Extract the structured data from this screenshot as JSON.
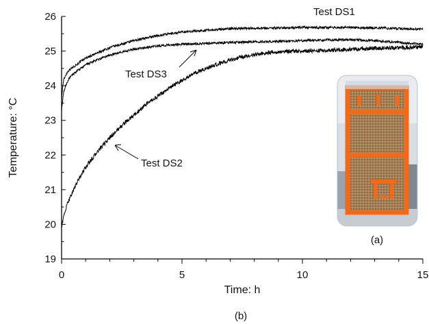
{
  "chart_data": {
    "type": "line",
    "title": "",
    "xlabel": "Time: h",
    "ylabel": "Temperature: °C",
    "xlim": [
      0,
      15
    ],
    "ylim": [
      19,
      26
    ],
    "x_ticks": [
      0,
      5,
      10,
      15
    ],
    "y_ticks": [
      19,
      20,
      21,
      22,
      23,
      24,
      25,
      26
    ],
    "grid": false,
    "legend": "none",
    "series": [
      {
        "name": "Test DS1",
        "color": "#000000",
        "x": [
          0,
          0.05,
          0.1,
          0.2,
          0.3,
          0.5,
          0.8,
          1.0,
          1.5,
          2.0,
          2.5,
          3.0,
          3.5,
          4.0,
          4.5,
          5.0,
          6.0,
          7.0,
          8.0,
          9.0,
          10.0,
          11.0,
          12.0,
          13.0,
          14.0,
          15.0
        ],
        "y": [
          23.6,
          24.0,
          24.2,
          24.35,
          24.45,
          24.55,
          24.7,
          24.8,
          24.95,
          25.1,
          25.2,
          25.3,
          25.38,
          25.45,
          25.5,
          25.55,
          25.6,
          25.65,
          25.66,
          25.67,
          25.68,
          25.68,
          25.68,
          25.67,
          25.65,
          25.63
        ]
      },
      {
        "name": "Test DS3",
        "color": "#000000",
        "x": [
          0,
          0.05,
          0.1,
          0.2,
          0.3,
          0.5,
          0.8,
          1.0,
          1.5,
          2.0,
          2.5,
          3.0,
          3.5,
          4.0,
          4.5,
          5.0,
          6.0,
          7.0,
          8.0,
          9.0,
          10.0,
          11.0,
          12.0,
          13.0,
          14.0,
          15.0
        ],
        "y": [
          23.3,
          23.6,
          23.85,
          24.05,
          24.2,
          24.35,
          24.5,
          24.6,
          24.75,
          24.88,
          24.98,
          25.05,
          25.1,
          25.15,
          25.18,
          25.2,
          25.22,
          25.25,
          25.27,
          25.28,
          25.3,
          25.32,
          25.33,
          25.3,
          25.25,
          25.2
        ]
      },
      {
        "name": "Test DS2",
        "color": "#000000",
        "x": [
          0,
          0.05,
          0.1,
          0.2,
          0.3,
          0.5,
          0.75,
          1.0,
          1.5,
          2.0,
          2.5,
          3.0,
          3.5,
          4.0,
          4.5,
          5.0,
          5.5,
          6.0,
          7.0,
          8.0,
          9.0,
          10.0,
          11.0,
          12.0,
          13.0,
          14.0,
          15.0
        ],
        "y": [
          19.95,
          20.1,
          20.25,
          20.5,
          20.7,
          21.0,
          21.35,
          21.65,
          22.1,
          22.5,
          22.85,
          23.15,
          23.45,
          23.7,
          23.95,
          24.15,
          24.35,
          24.5,
          24.75,
          24.9,
          24.98,
          25.0,
          25.02,
          25.05,
          25.08,
          25.1,
          25.12
        ]
      }
    ],
    "annotations": [
      {
        "text": "Test DS1"
      },
      {
        "text": "Test DS3"
      },
      {
        "text": "Test DS2"
      }
    ],
    "inset_label": "(a)",
    "caption": "(b)"
  }
}
